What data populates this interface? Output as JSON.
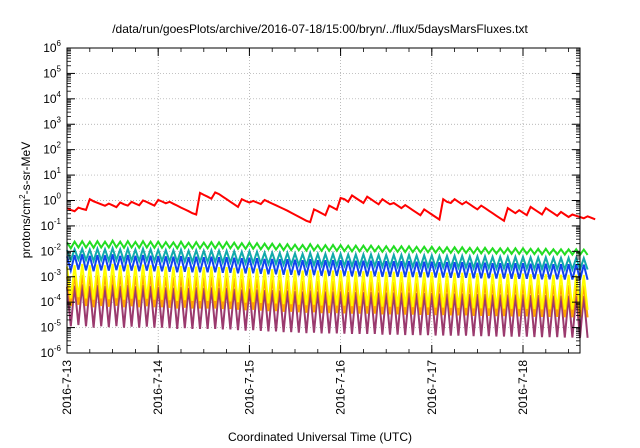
{
  "chart_data": {
    "type": "line",
    "title": "/data/run/goesPlots/archive/2016-07-18/15:00/bryn/../flux/5daysMarsFluxes.txt",
    "xlabel": "Coordinated Universal Time (UTC)",
    "ylabel": {
      "prefix": "protons/cm",
      "sup": "2",
      "suffix": "-s-sr-MeV"
    },
    "yscale": "log",
    "ylim": [
      1e-06,
      1000000.0
    ],
    "y_ticks": [
      {
        "base": "10",
        "exp": "-6"
      },
      {
        "base": "10",
        "exp": "-5"
      },
      {
        "base": "10",
        "exp": "-4"
      },
      {
        "base": "10",
        "exp": "-3"
      },
      {
        "base": "10",
        "exp": "-2"
      },
      {
        "base": "10",
        "exp": "-1"
      },
      {
        "base": "10",
        "exp": "0"
      },
      {
        "base": "10",
        "exp": "1"
      },
      {
        "base": "10",
        "exp": "2"
      },
      {
        "base": "10",
        "exp": "3"
      },
      {
        "base": "10",
        "exp": "4"
      },
      {
        "base": "10",
        "exp": "5"
      },
      {
        "base": "10",
        "exp": "6"
      }
    ],
    "xlim": [
      "2016-07-13 00:00",
      "2016-07-18 15:00"
    ],
    "x_ticks": [
      "2016-7-13",
      "2016-7-14",
      "2016-7-15",
      "2016-7-16",
      "2016-7-17",
      "2016-7-18"
    ],
    "grid": true,
    "legend": "none",
    "series": [
      {
        "color": "#ff0000",
        "hourly_log10": [
          -0.3,
          -0.37,
          -0.42,
          -0.28,
          -0.33,
          -0.37,
          0.05,
          -0.03,
          -0.09,
          -0.15,
          -0.21,
          -0.12,
          -0.19,
          -0.26,
          -0.08,
          -0.15,
          -0.2,
          -0.05,
          -0.12,
          -0.19,
          0.0,
          -0.06,
          -0.13,
          -0.2,
          0.02,
          -0.04,
          -0.11,
          -0.05,
          -0.13,
          -0.2,
          -0.28,
          -0.35,
          -0.42,
          -0.5,
          -0.55,
          0.3,
          0.22,
          0.15,
          0.07,
          0.32,
          0.25,
          0.15,
          0.05,
          -0.05,
          -0.15,
          -0.25,
          0.05,
          -0.02,
          -0.08,
          -0.02,
          -0.08,
          -0.14,
          0.02,
          -0.05,
          -0.12,
          -0.19,
          -0.26,
          -0.33,
          -0.4,
          -0.48,
          -0.56,
          -0.64,
          -0.72,
          -0.8,
          -0.85,
          -0.35,
          -0.42,
          -0.5,
          -0.58,
          -0.2,
          -0.28,
          -0.36,
          0.1,
          0.05,
          -0.05,
          0.2,
          0.1,
          0.0,
          -0.1,
          0.15,
          0.05,
          -0.05,
          -0.15,
          0.05,
          -0.05,
          -0.15,
          -0.1,
          -0.2,
          -0.3,
          -0.18,
          -0.28,
          -0.38,
          -0.48,
          -0.58,
          -0.35,
          -0.45,
          -0.55,
          -0.65,
          -0.75,
          0.05,
          -0.05,
          -0.1,
          0.05,
          -0.05,
          -0.15,
          -0.05,
          -0.15,
          -0.25,
          -0.35,
          -0.2,
          -0.3,
          -0.4,
          -0.5,
          -0.6,
          -0.7,
          -0.8,
          -0.3,
          -0.4,
          -0.5,
          -0.38,
          -0.48,
          -0.58,
          -0.25,
          -0.35,
          -0.45,
          -0.55,
          -0.3,
          -0.4,
          -0.5,
          -0.6,
          -0.45,
          -0.55,
          -0.65,
          -0.55,
          -0.6,
          -0.65,
          -0.7,
          -0.62,
          -0.68,
          -0.74
        ]
      },
      {
        "color": "#22dd22",
        "hourly_log10": [
          -1.65,
          -1.88,
          -1.62,
          -1.85,
          -1.6,
          -1.85,
          -1.62,
          -1.86,
          -1.6,
          -1.85,
          -1.62,
          -1.85,
          -1.58,
          -1.84,
          -1.62,
          -1.86,
          -1.6,
          -1.85,
          -1.63,
          -1.86,
          -1.6,
          -1.85,
          -1.62,
          -1.86,
          -1.62,
          -1.86,
          -1.64,
          -1.86,
          -1.65,
          -1.88,
          -1.62,
          -1.87,
          -1.66,
          -1.88,
          -1.64,
          -1.88,
          -1.66,
          -1.88,
          -1.64,
          -1.88,
          -1.65,
          -1.88,
          -1.64,
          -1.88,
          -1.66,
          -1.9,
          -1.68,
          -1.9,
          -1.66,
          -1.9,
          -1.68,
          -1.92,
          -1.7,
          -1.92,
          -1.7,
          -1.93,
          -1.72,
          -1.95,
          -1.72,
          -1.95,
          -1.74,
          -1.96,
          -1.75,
          -1.97,
          -1.72,
          -1.96,
          -1.76,
          -1.98,
          -1.76,
          -1.98,
          -1.75,
          -1.98,
          -1.76,
          -1.99,
          -1.78,
          -2.0,
          -1.78,
          -2.0,
          -1.78,
          -2.0,
          -1.78,
          -2.0,
          -1.8,
          -2.02,
          -1.8,
          -2.02,
          -1.8,
          -2.02,
          -1.8,
          -2.03,
          -1.8,
          -2.03,
          -1.82,
          -2.04,
          -1.82,
          -2.04,
          -1.82,
          -2.05,
          -1.84,
          -2.05,
          -1.84,
          -2.06,
          -1.84,
          -2.06,
          -1.84,
          -2.06,
          -1.86,
          -2.08,
          -1.86,
          -2.08,
          -1.86,
          -2.08,
          -1.88,
          -2.09,
          -1.88,
          -2.09,
          -1.88,
          -2.1,
          -1.88,
          -2.1,
          -1.88,
          -2.1,
          -1.9,
          -2.11,
          -1.9,
          -2.12,
          -1.9,
          -2.12,
          -1.92,
          -2.12,
          -1.92,
          -2.13,
          -1.92,
          -2.13,
          -1.92,
          -2.14,
          -1.93,
          -2.14
        ]
      },
      {
        "color": "#11aaaa",
        "hourly_log10": [
          -1.95,
          -2.35,
          -1.92,
          -2.32,
          -1.9,
          -2.35,
          -1.93,
          -2.38,
          -1.9,
          -2.35,
          -1.92,
          -2.36,
          -1.88,
          -2.34,
          -1.92,
          -2.38,
          -1.9,
          -2.36,
          -1.93,
          -2.38,
          -1.9,
          -2.36,
          -1.92,
          -2.38,
          -1.94,
          -2.38,
          -1.95,
          -2.4,
          -1.96,
          -2.42,
          -1.94,
          -2.4,
          -1.98,
          -2.42,
          -1.96,
          -2.42,
          -1.98,
          -2.42,
          -1.96,
          -2.42,
          -1.98,
          -2.44,
          -1.98,
          -2.44,
          -2.0,
          -2.46,
          -2.02,
          -2.47,
          -2.0,
          -2.46,
          -2.02,
          -2.48,
          -2.05,
          -2.5,
          -2.05,
          -2.5,
          -2.06,
          -2.52,
          -2.06,
          -2.52,
          -2.08,
          -2.54,
          -2.1,
          -2.55,
          -2.06,
          -2.54,
          -2.1,
          -2.56,
          -2.1,
          -2.56,
          -2.1,
          -2.56,
          -2.1,
          -2.57,
          -2.12,
          -2.58,
          -2.12,
          -2.58,
          -2.12,
          -2.58,
          -2.12,
          -2.58,
          -2.14,
          -2.6,
          -2.14,
          -2.6,
          -2.14,
          -2.6,
          -2.14,
          -2.61,
          -2.14,
          -2.61,
          -2.16,
          -2.62,
          -2.16,
          -2.62,
          -2.16,
          -2.63,
          -2.18,
          -2.63,
          -2.18,
          -2.64,
          -2.18,
          -2.64,
          -2.18,
          -2.64,
          -2.2,
          -2.66,
          -2.2,
          -2.66,
          -2.2,
          -2.66,
          -2.22,
          -2.67,
          -2.22,
          -2.67,
          -2.22,
          -2.68,
          -2.22,
          -2.68,
          -2.22,
          -2.68,
          -2.24,
          -2.69,
          -2.24,
          -2.7,
          -2.24,
          -2.7,
          -2.26,
          -2.7,
          -2.26,
          -2.71,
          -2.26,
          -2.71,
          -2.26,
          -2.72,
          -2.27,
          -2.72
        ]
      },
      {
        "color": "#1144ee",
        "hourly_log10": [
          -2.2,
          -2.75,
          -2.15,
          -2.72,
          -2.12,
          -2.75,
          -2.18,
          -2.78,
          -2.15,
          -2.75,
          -2.16,
          -2.76,
          -2.12,
          -2.74,
          -2.18,
          -2.78,
          -2.15,
          -2.76,
          -2.18,
          -2.78,
          -2.15,
          -2.76,
          -2.17,
          -2.78,
          -2.19,
          -2.78,
          -2.2,
          -2.8,
          -2.21,
          -2.82,
          -2.19,
          -2.8,
          -2.23,
          -2.82,
          -2.21,
          -2.82,
          -2.23,
          -2.82,
          -2.21,
          -2.82,
          -2.23,
          -2.84,
          -2.23,
          -2.84,
          -2.25,
          -2.86,
          -2.27,
          -2.87,
          -2.25,
          -2.86,
          -2.27,
          -2.88,
          -2.3,
          -2.9,
          -2.3,
          -2.9,
          -2.31,
          -2.92,
          -2.31,
          -2.92,
          -2.33,
          -2.94,
          -2.35,
          -2.95,
          -2.31,
          -2.94,
          -2.35,
          -2.96,
          -2.35,
          -2.96,
          -2.35,
          -2.96,
          -2.35,
          -2.97,
          -2.37,
          -2.98,
          -2.37,
          -2.98,
          -2.37,
          -2.98,
          -2.37,
          -2.98,
          -2.39,
          -3.0,
          -2.39,
          -3.0,
          -2.39,
          -3.0,
          -2.39,
          -3.01,
          -2.39,
          -3.01,
          -2.41,
          -3.02,
          -2.41,
          -3.02,
          -2.41,
          -3.03,
          -2.43,
          -3.03,
          -2.43,
          -3.04,
          -2.43,
          -3.04,
          -2.43,
          -3.04,
          -2.45,
          -3.06,
          -2.45,
          -3.06,
          -2.45,
          -3.06,
          -2.47,
          -3.07,
          -2.47,
          -3.07,
          -2.47,
          -3.08,
          -2.47,
          -3.08,
          -2.47,
          -3.08,
          -2.49,
          -3.09,
          -2.49,
          -3.1,
          -2.49,
          -3.1,
          -2.51,
          -3.1,
          -2.51,
          -3.11,
          -2.51,
          -3.11,
          -2.51,
          -3.12,
          -2.52,
          -3.12
        ]
      },
      {
        "color": "#ffff00",
        "hourly_log10": [
          -2.6,
          -3.85,
          -2.55,
          -3.8,
          -2.5,
          -3.85,
          -2.55,
          -3.9,
          -2.52,
          -3.85,
          -2.55,
          -3.88,
          -2.5,
          -3.84,
          -2.55,
          -3.9,
          -2.52,
          -3.86,
          -2.56,
          -3.9,
          -2.52,
          -3.86,
          -2.55,
          -3.9,
          -2.58,
          -3.9,
          -2.6,
          -3.92,
          -2.61,
          -3.95,
          -2.58,
          -3.92,
          -2.62,
          -3.95,
          -2.6,
          -3.95,
          -2.62,
          -3.95,
          -2.6,
          -3.95,
          -2.62,
          -3.97,
          -2.62,
          -3.97,
          -2.65,
          -4.0,
          -2.68,
          -4.02,
          -2.65,
          -4.0,
          -2.68,
          -4.03,
          -2.7,
          -4.05,
          -2.7,
          -4.05,
          -2.72,
          -4.08,
          -2.72,
          -4.08,
          -2.75,
          -4.1,
          -2.76,
          -4.12,
          -2.72,
          -4.1,
          -2.76,
          -4.13,
          -2.76,
          -4.13,
          -2.76,
          -4.13,
          -2.76,
          -4.14,
          -2.78,
          -4.15,
          -2.78,
          -4.15,
          -2.78,
          -4.15,
          -2.78,
          -4.15,
          -2.8,
          -4.18,
          -2.8,
          -4.18,
          -2.8,
          -4.18,
          -2.8,
          -4.19,
          -2.8,
          -4.19,
          -2.82,
          -4.2,
          -2.82,
          -4.2,
          -2.82,
          -4.21,
          -2.84,
          -4.21,
          -2.84,
          -4.22,
          -2.84,
          -4.22,
          -2.84,
          -4.22,
          -2.86,
          -4.24,
          -2.86,
          -4.24,
          -2.86,
          -4.24,
          -2.88,
          -4.25,
          -2.88,
          -4.25,
          -2.88,
          -4.26,
          -2.88,
          -4.26,
          -2.88,
          -4.26,
          -2.9,
          -4.27,
          -2.9,
          -4.28,
          -2.9,
          -4.28,
          -2.92,
          -4.28,
          -2.92,
          -4.29,
          -2.92,
          -4.29,
          -2.92,
          -4.3,
          -2.93,
          -4.3
        ]
      },
      {
        "color": "#ffa500",
        "hourly_log10": [
          -3.0,
          -4.15,
          -2.95,
          -4.1,
          -2.92,
          -4.15,
          -2.96,
          -4.2,
          -2.93,
          -4.15,
          -2.96,
          -4.18,
          -2.92,
          -4.14,
          -2.96,
          -4.2,
          -2.93,
          -4.16,
          -2.97,
          -4.2,
          -2.93,
          -4.16,
          -2.96,
          -4.2,
          -2.99,
          -4.2,
          -3.01,
          -4.22,
          -3.02,
          -4.25,
          -2.99,
          -4.22,
          -3.03,
          -4.25,
          -3.01,
          -4.25,
          -3.03,
          -4.25,
          -3.01,
          -4.25,
          -3.03,
          -4.27,
          -3.03,
          -4.27,
          -3.06,
          -4.3,
          -3.09,
          -4.32,
          -3.06,
          -4.3,
          -3.09,
          -4.33,
          -3.11,
          -4.35,
          -3.11,
          -4.35,
          -3.13,
          -4.38,
          -3.13,
          -4.38,
          -3.16,
          -4.4,
          -3.17,
          -4.42,
          -3.13,
          -4.4,
          -3.17,
          -4.43,
          -3.17,
          -4.43,
          -3.17,
          -4.43,
          -3.17,
          -4.44,
          -3.19,
          -4.45,
          -3.19,
          -4.45,
          -3.19,
          -4.45,
          -3.19,
          -4.45,
          -3.21,
          -4.48,
          -3.21,
          -4.48,
          -3.21,
          -4.48,
          -3.21,
          -4.49,
          -3.21,
          -4.49,
          -3.23,
          -4.5,
          -3.23,
          -4.5,
          -3.23,
          -4.51,
          -3.25,
          -4.51,
          -3.25,
          -4.52,
          -3.25,
          -4.52,
          -3.25,
          -4.52,
          -3.27,
          -4.54,
          -3.27,
          -4.54,
          -3.27,
          -4.54,
          -3.29,
          -4.55,
          -3.29,
          -4.55,
          -3.29,
          -4.56,
          -3.29,
          -4.56,
          -3.29,
          -4.56,
          -3.31,
          -4.57,
          -3.31,
          -4.58,
          -3.31,
          -4.58,
          -3.33,
          -4.58,
          -3.33,
          -4.59,
          -3.33,
          -4.59,
          -3.33,
          -4.6,
          -3.34,
          -4.6
        ]
      },
      {
        "color": "#9b3a6e",
        "hourly_log10": [
          -3.4,
          -4.95,
          -3.35,
          -4.9,
          -3.3,
          -4.95,
          -3.36,
          -5.0,
          -3.32,
          -4.95,
          -3.36,
          -4.98,
          -3.3,
          -4.94,
          -3.36,
          -5.0,
          -3.32,
          -4.96,
          -3.37,
          -5.0,
          -3.32,
          -4.96,
          -3.36,
          -5.0,
          -3.4,
          -5.0,
          -3.42,
          -5.02,
          -3.43,
          -5.05,
          -3.4,
          -5.02,
          -3.44,
          -5.05,
          -3.42,
          -5.05,
          -3.44,
          -5.05,
          -3.42,
          -5.05,
          -3.44,
          -5.07,
          -3.44,
          -5.07,
          -3.47,
          -5.1,
          -3.5,
          -5.12,
          -3.47,
          -5.1,
          -3.5,
          -5.13,
          -3.52,
          -5.15,
          -3.52,
          -5.15,
          -3.54,
          -5.18,
          -3.54,
          -5.18,
          -3.57,
          -5.2,
          -3.58,
          -5.22,
          -3.54,
          -5.2,
          -3.58,
          -5.23,
          -3.58,
          -5.23,
          -3.58,
          -5.23,
          -3.58,
          -5.24,
          -3.6,
          -5.25,
          -3.6,
          -5.25,
          -3.6,
          -5.25,
          -3.6,
          -5.25,
          -3.62,
          -5.28,
          -3.62,
          -5.28,
          -3.62,
          -5.28,
          -3.62,
          -5.29,
          -3.62,
          -5.29,
          -3.64,
          -5.3,
          -3.64,
          -5.3,
          -3.64,
          -5.31,
          -3.66,
          -5.31,
          -3.66,
          -5.32,
          -3.66,
          -5.32,
          -3.66,
          -5.32,
          -3.68,
          -5.34,
          -3.68,
          -5.34,
          -3.68,
          -5.34,
          -3.7,
          -5.35,
          -3.7,
          -5.35,
          -3.7,
          -5.36,
          -3.7,
          -5.36,
          -3.7,
          -5.36,
          -3.72,
          -5.37,
          -3.72,
          -5.38,
          -3.72,
          -5.38,
          -3.74,
          -5.38,
          -3.74,
          -5.39,
          -3.74,
          -5.39,
          -3.74,
          -5.4,
          -3.75,
          -5.4
        ]
      }
    ]
  }
}
